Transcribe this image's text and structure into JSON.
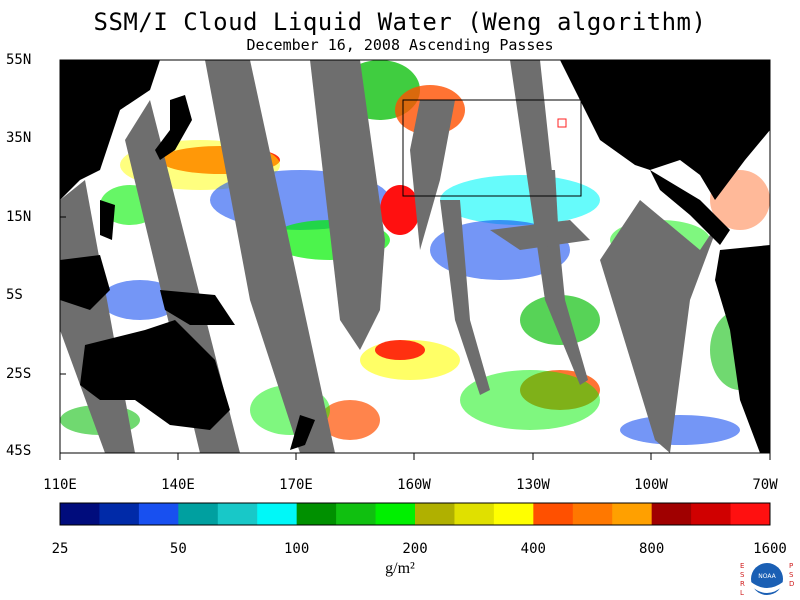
{
  "title": "SSM/I Cloud Liquid Water (Weng algorithm)",
  "subtitle": "December 16, 2008  Ascending Passes",
  "latitude_labels": [
    "55N",
    "35N",
    "15N",
    "5S",
    "25S",
    "45S"
  ],
  "longitude_labels": [
    "110E",
    "140E",
    "170E",
    "160W",
    "130W",
    "100W",
    "70W"
  ],
  "colorbar": {
    "colors": [
      "#000c7c",
      "#002aa8",
      "#1850f0",
      "#00a0a0",
      "#18c8c8",
      "#00f8f8",
      "#009000",
      "#10c010",
      "#00f000",
      "#b0b000",
      "#e0e000",
      "#ffff00",
      "#ff5000",
      "#ff7800",
      "#ffa000",
      "#a00000",
      "#d00000",
      "#ff1010"
    ],
    "tick_labels": [
      "25",
      "50",
      "100",
      "200",
      "400",
      "800",
      "1600"
    ]
  },
  "units": "g/m²",
  "logo": {
    "left_letters": "ESRL",
    "right_letters": "PSD",
    "center_text": "NOAA"
  }
}
